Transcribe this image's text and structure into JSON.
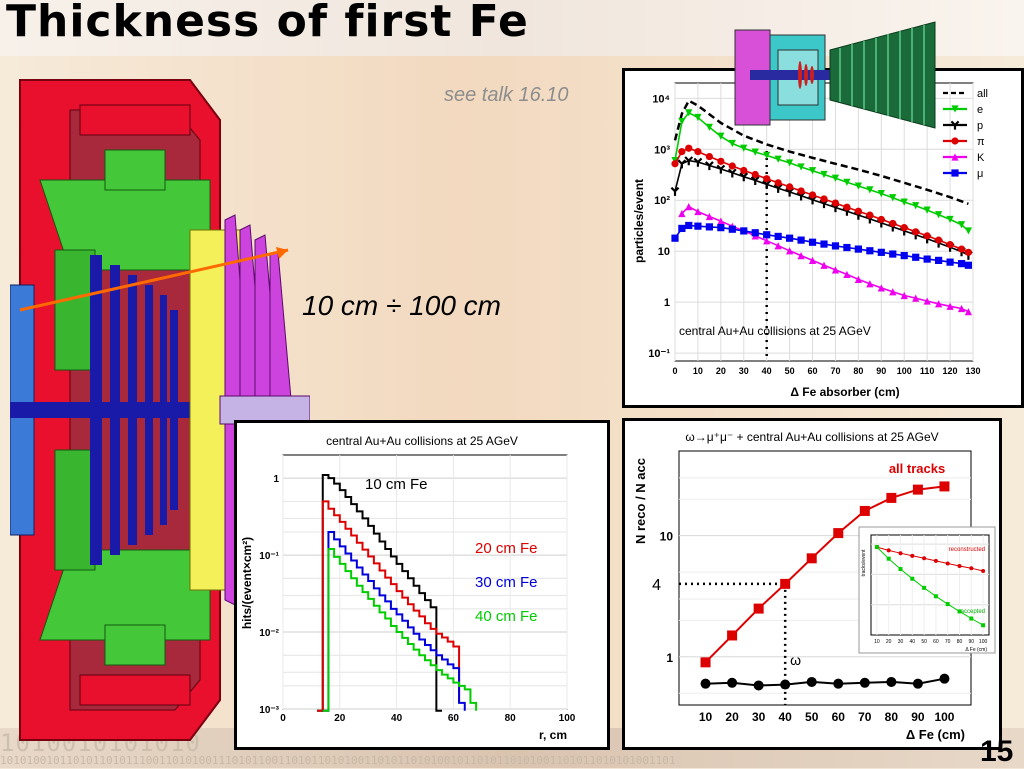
{
  "slide": {
    "title": "Thickness of first Fe",
    "see_talk": "see talk 16.10",
    "range_label": "10 cm ÷ 100 cm",
    "page_number": "15",
    "binary_text": "1010010101010",
    "binary_text_small": "101010010110101101011100110101001110101100110101101010011010110101001011010110101001101011010101001101"
  },
  "chart_data": [
    {
      "type": "line",
      "annotation": "central Au+Au collisions at 25 AGeV",
      "xlabel": "Δ Fe absorber (cm)",
      "ylabel": "particles/event",
      "yscale": "log",
      "xlim": [
        0,
        130
      ],
      "ylim": [
        0.07,
        20000
      ],
      "x_ticks": [
        "0",
        "10",
        "20",
        "30",
        "40",
        "50",
        "60",
        "70",
        "80",
        "90",
        "100",
        "110",
        "120",
        "130"
      ],
      "y_ticks": [
        {
          "v": 0.1,
          "label": "10⁻¹"
        },
        {
          "v": 1,
          "label": "1"
        },
        {
          "v": 10,
          "label": "10"
        },
        {
          "v": 100,
          "label": "10²"
        },
        {
          "v": 1000,
          "label": "10³"
        },
        {
          "v": 10000,
          "label": "10⁴"
        }
      ],
      "marker_x": 40,
      "legend_position": "top-right",
      "series": [
        {
          "name": "all",
          "color": "#000000",
          "dash": true,
          "x": [
            0,
            3,
            6,
            10,
            20,
            30,
            40,
            50,
            60,
            70,
            80,
            90,
            100,
            110,
            120,
            128
          ],
          "values": [
            1500,
            5000,
            9000,
            7200,
            3300,
            1850,
            1250,
            900,
            680,
            520,
            400,
            300,
            220,
            160,
            115,
            85
          ]
        },
        {
          "name": "e",
          "color": "#00cc00",
          "marker": "triangle-down",
          "x": [
            0,
            3,
            6,
            10,
            15,
            20,
            25,
            30,
            35,
            40,
            45,
            50,
            55,
            60,
            65,
            70,
            75,
            80,
            85,
            90,
            95,
            100,
            105,
            110,
            115,
            120,
            125,
            128
          ],
          "values": [
            600,
            3500,
            5200,
            4200,
            2700,
            1800,
            1300,
            1050,
            880,
            760,
            640,
            540,
            450,
            380,
            320,
            270,
            225,
            190,
            160,
            135,
            112,
            92,
            78,
            64,
            52,
            42,
            33,
            25
          ]
        },
        {
          "name": "p",
          "color": "#000000",
          "marker": "tri-star",
          "x": [
            0,
            3,
            6,
            10,
            15,
            20,
            25,
            30,
            35,
            40,
            45,
            50,
            55,
            60,
            65,
            70,
            75,
            80,
            85,
            90,
            95,
            100,
            105,
            110,
            115,
            120,
            125,
            128
          ],
          "values": [
            150,
            520,
            600,
            560,
            480,
            410,
            345,
            290,
            245,
            205,
            172,
            145,
            122,
            102,
            86,
            72,
            61,
            51,
            43,
            36,
            30,
            25,
            21,
            17.5,
            14.5,
            12,
            9.8,
            8.3
          ]
        },
        {
          "name": "π",
          "color": "#dd0000",
          "marker": "circle",
          "x": [
            0,
            3,
            6,
            10,
            15,
            20,
            25,
            30,
            35,
            40,
            45,
            50,
            55,
            60,
            65,
            70,
            75,
            80,
            85,
            90,
            95,
            100,
            105,
            110,
            115,
            120,
            125,
            128
          ],
          "values": [
            520,
            900,
            1050,
            900,
            720,
            580,
            470,
            385,
            320,
            265,
            220,
            183,
            152,
            127,
            106,
            88,
            73,
            61,
            51,
            42,
            35,
            29,
            24,
            20,
            16.5,
            13.5,
            11,
            9.5
          ]
        },
        {
          "name": "K",
          "color": "#ee00ee",
          "marker": "triangle-up",
          "x": [
            3,
            6,
            10,
            15,
            20,
            25,
            30,
            35,
            40,
            45,
            50,
            55,
            60,
            65,
            70,
            75,
            80,
            85,
            90,
            95,
            100,
            105,
            110,
            115,
            120,
            125,
            128
          ],
          "values": [
            55,
            75,
            60,
            48,
            39,
            31,
            25,
            20,
            16,
            12.8,
            10.2,
            8.2,
            6.6,
            5.3,
            4.3,
            3.5,
            2.8,
            2.3,
            1.9,
            1.6,
            1.35,
            1.2,
            1.05,
            0.93,
            0.83,
            0.75,
            0.65
          ]
        },
        {
          "name": "μ",
          "color": "#0000ee",
          "marker": "square",
          "x": [
            0,
            3,
            6,
            10,
            15,
            20,
            25,
            30,
            35,
            40,
            45,
            50,
            55,
            60,
            65,
            70,
            75,
            80,
            85,
            90,
            95,
            100,
            105,
            110,
            115,
            120,
            125,
            128
          ],
          "values": [
            18,
            28,
            32,
            31,
            30,
            29,
            27,
            25,
            23,
            21,
            19.5,
            18,
            16.5,
            15,
            13.8,
            12.7,
            11.8,
            11,
            10.2,
            9.5,
            8.8,
            8.2,
            7.6,
            7,
            6.6,
            6.1,
            5.7,
            5.3
          ]
        }
      ]
    },
    {
      "type": "line",
      "step": true,
      "annotation": "central Au+Au collisions at 25 AGeV",
      "xlabel": "r, cm",
      "ylabel": "hits/(event×cm²)",
      "yscale": "log",
      "xlim": [
        0,
        100
      ],
      "ylim": [
        0.001,
        2
      ],
      "x_ticks": [
        "0",
        "20",
        "40",
        "60",
        "80",
        "100"
      ],
      "y_ticks": [
        {
          "v": 0.001,
          "label": "10⁻³"
        },
        {
          "v": 0.01,
          "label": "10⁻²"
        },
        {
          "v": 0.1,
          "label": "10⁻¹"
        },
        {
          "v": 1,
          "label": "1"
        }
      ],
      "series": [
        {
          "name": "10 cm Fe",
          "color": "#000000",
          "x": [
            12,
            14,
            16,
            18,
            20,
            22,
            24,
            26,
            28,
            30,
            32,
            34,
            36,
            38,
            40,
            42,
            44,
            46,
            48,
            50,
            52,
            54,
            56
          ],
          "values": [
            0.00095,
            1.1,
            1.0,
            0.85,
            0.7,
            0.57,
            0.46,
            0.37,
            0.3,
            0.24,
            0.19,
            0.15,
            0.12,
            0.096,
            0.077,
            0.062,
            0.05,
            0.04,
            0.032,
            0.026,
            0.021,
            0.00095,
            0.00095
          ]
        },
        {
          "name": "20 cm Fe",
          "color": "#dd0000",
          "x": [
            12,
            14,
            16,
            18,
            20,
            22,
            24,
            26,
            28,
            30,
            32,
            34,
            36,
            38,
            40,
            42,
            44,
            46,
            48,
            50,
            52,
            54,
            56,
            58,
            60,
            62
          ],
          "values": [
            0.00095,
            0.5,
            0.4,
            0.33,
            0.27,
            0.22,
            0.18,
            0.145,
            0.118,
            0.096,
            0.078,
            0.063,
            0.051,
            0.042,
            0.034,
            0.028,
            0.023,
            0.019,
            0.016,
            0.013,
            0.011,
            0.0095,
            0.0085,
            0.0075,
            0.0065,
            0.0012
          ]
        },
        {
          "name": "30 cm Fe",
          "color": "#0000dd",
          "x": [
            14,
            16,
            18,
            20,
            22,
            24,
            26,
            28,
            30,
            32,
            34,
            36,
            38,
            40,
            42,
            44,
            46,
            48,
            50,
            52,
            54,
            56,
            58,
            60,
            62,
            64
          ],
          "values": [
            0.00095,
            0.2,
            0.16,
            0.13,
            0.105,
            0.085,
            0.069,
            0.056,
            0.046,
            0.037,
            0.03,
            0.025,
            0.02,
            0.017,
            0.014,
            0.0115,
            0.0095,
            0.008,
            0.0068,
            0.0058,
            0.005,
            0.0044,
            0.0038,
            0.0034,
            0.0012,
            0.00095
          ]
        },
        {
          "name": "40 cm Fe",
          "color": "#00cc00",
          "x": [
            14,
            16,
            18,
            20,
            22,
            24,
            26,
            28,
            30,
            32,
            34,
            36,
            38,
            40,
            42,
            44,
            46,
            48,
            50,
            52,
            54,
            56,
            58,
            60,
            62,
            64,
            66,
            68
          ],
          "values": [
            0.00095,
            0.12,
            0.095,
            0.077,
            0.062,
            0.05,
            0.04,
            0.033,
            0.027,
            0.022,
            0.018,
            0.015,
            0.012,
            0.01,
            0.0084,
            0.007,
            0.0059,
            0.005,
            0.0043,
            0.0037,
            0.0032,
            0.0028,
            0.0025,
            0.0022,
            0.002,
            0.0018,
            0.0012,
            0.00095
          ]
        }
      ]
    },
    {
      "type": "line",
      "annotation": "ω→μ⁺μ⁻ + central Au+Au collisions at 25 AGeV",
      "xlabel": "Δ Fe (cm)",
      "ylabel": "N reco / N acc",
      "yscale": "log",
      "xlim": [
        0,
        110
      ],
      "ylim": [
        0.4,
        50
      ],
      "x_ticks": [
        "10",
        "20",
        "30",
        "40",
        "50",
        "60",
        "70",
        "80",
        "90",
        "100"
      ],
      "y_ticks": [
        {
          "v": 1,
          "label": "1"
        },
        {
          "v": 10,
          "label": "10"
        }
      ],
      "marker_x": 40,
      "marker_y": 4,
      "marker_y_label": "4",
      "omega_label": "ω",
      "series": [
        {
          "name": "all tracks",
          "color": "#dd0000",
          "marker": "square",
          "x": [
            10,
            20,
            30,
            40,
            50,
            60,
            70,
            80,
            90,
            100
          ],
          "values": [
            0.9,
            1.5,
            2.5,
            4,
            6.5,
            10.5,
            16,
            20.5,
            24,
            25.5
          ]
        },
        {
          "name": "",
          "color": "#000000",
          "marker": "circle",
          "x": [
            10,
            20,
            30,
            40,
            50,
            60,
            70,
            80,
            90,
            100
          ],
          "values": [
            0.6,
            0.61,
            0.58,
            0.59,
            0.62,
            0.6,
            0.61,
            0.62,
            0.6,
            0.66
          ]
        }
      ],
      "inset": {
        "ylabel": "tracks/event",
        "xlabel": "Δ Fe (cm)",
        "x_ticks": [
          "10",
          "20",
          "30",
          "40",
          "50",
          "60",
          "70",
          "80",
          "90",
          "100"
        ],
        "series": [
          {
            "name": "reconstructed",
            "color": "#dd0000",
            "x": [
              10,
              20,
              30,
              40,
              50,
              60,
              70,
              80,
              90,
              100
            ],
            "values": [
              800,
              620,
              500,
              410,
              340,
              280,
              230,
              190,
              160,
              130
            ]
          },
          {
            "name": "accepted",
            "color": "#00cc00",
            "x": [
              10,
              20,
              30,
              40,
              50,
              60,
              70,
              80,
              90,
              100
            ],
            "values": [
              800,
              330,
              150,
              72,
              36,
              19,
              10.5,
              6,
              3.5,
              2.1
            ]
          }
        ]
      }
    }
  ]
}
